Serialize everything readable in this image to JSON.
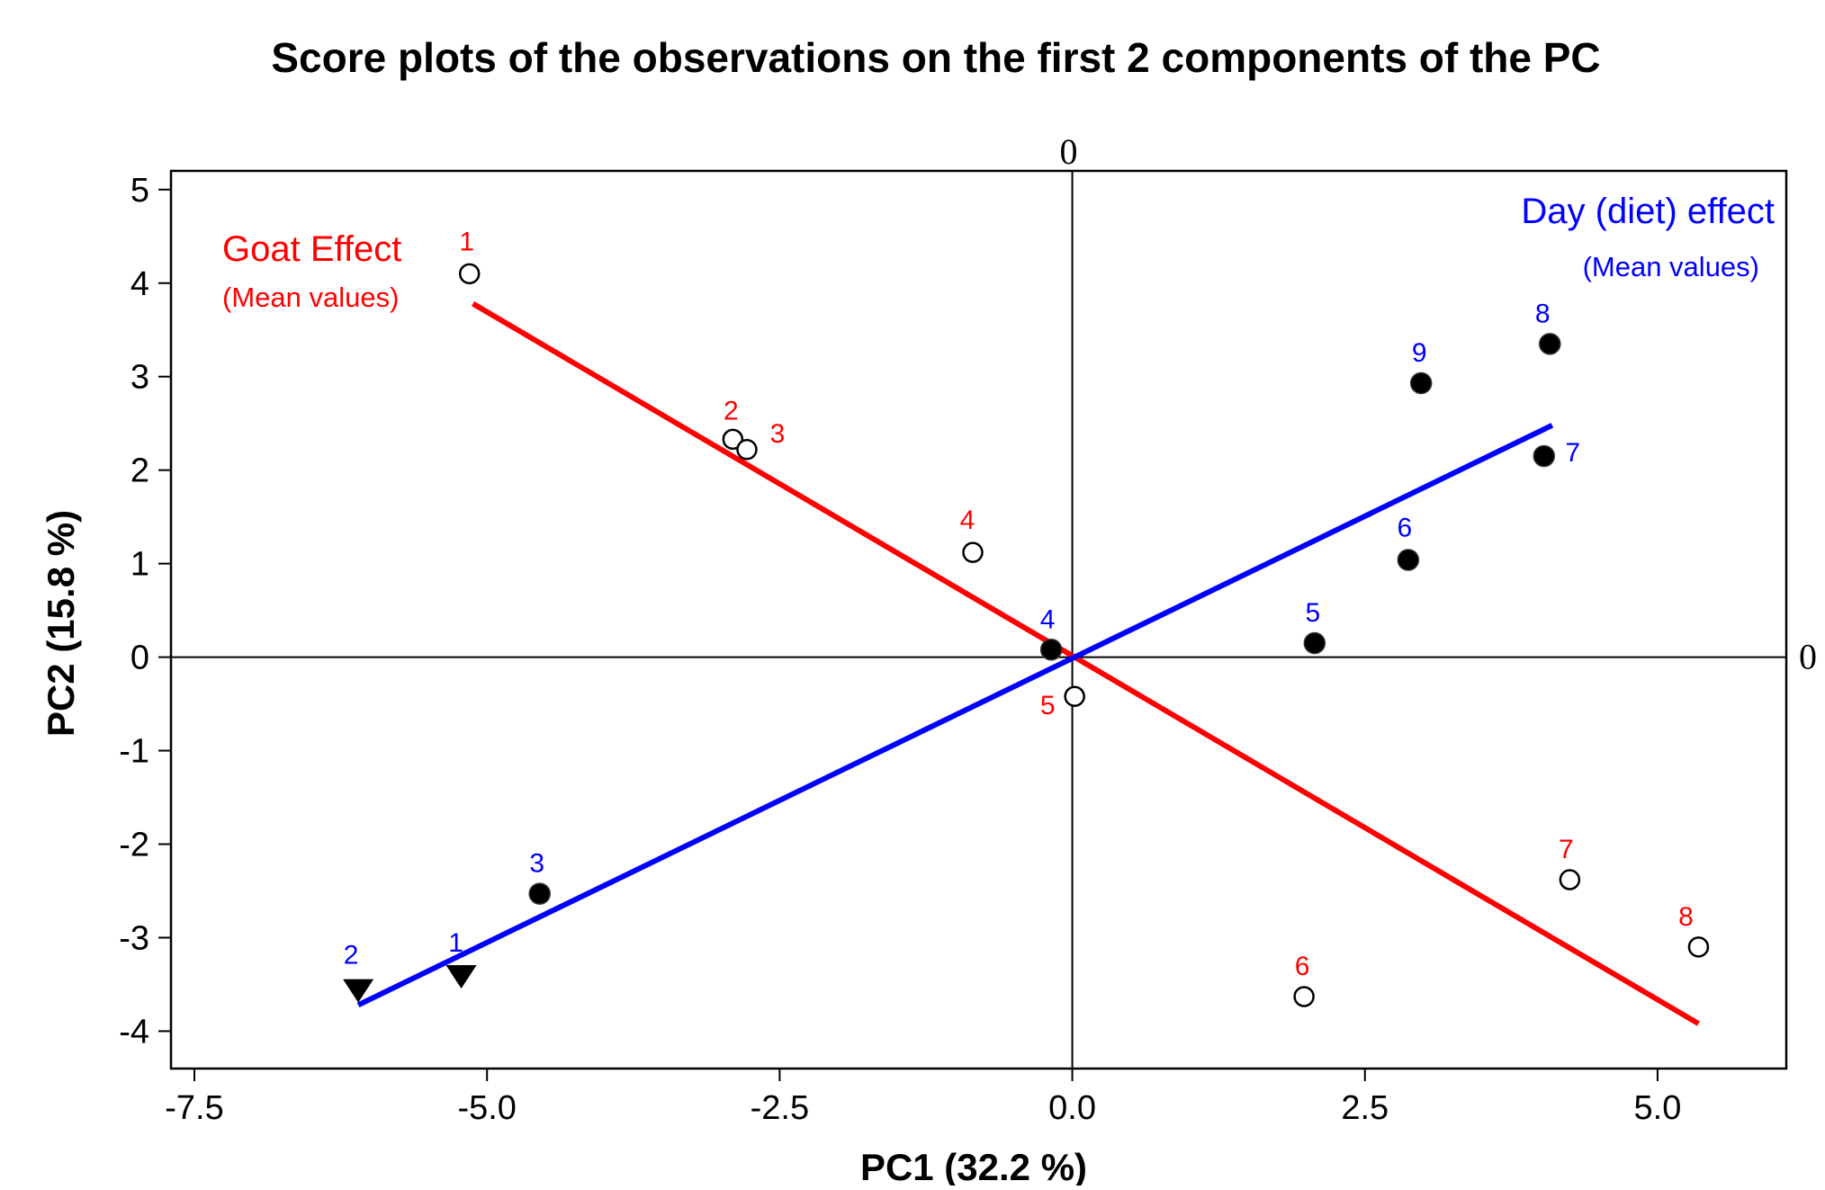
{
  "chart_data": {
    "type": "scatter",
    "title": "Score plots of the observations on the first 2 components of the PC",
    "xlabel": "PC1 (32.2 %)",
    "ylabel": "PC2 (15.8 %)",
    "xlim": [
      -7.7,
      6.1
    ],
    "ylim": [
      -4.4,
      5.2
    ],
    "xticks": [
      -7.5,
      -5.0,
      -2.5,
      0.0,
      2.5,
      5.0
    ],
    "xtick_labels": [
      "-7.5",
      "-5.0",
      "-2.5",
      "0.0",
      "2.5",
      "5.0"
    ],
    "yticks": [
      -4,
      -3,
      -2,
      -1,
      0,
      1,
      2,
      3,
      4,
      5
    ],
    "ytick_labels": [
      "-4",
      "-3",
      "-2",
      "-1",
      "0",
      "1",
      "2",
      "3",
      "4",
      "5"
    ],
    "grid": false,
    "zero_ref_lines": {
      "x_label": "0",
      "y_label": "0"
    },
    "colors": {
      "goat": "#ff0000",
      "day": "#0000ff",
      "marker": "#000000"
    },
    "annotations": {
      "goat_title": "Goat Effect",
      "goat_sub": "(Mean values)",
      "day_title": "Day (diet) effect",
      "day_sub": "(Mean values)"
    },
    "series": [
      {
        "group": "goat",
        "marker": "open-circle",
        "color": "#ff0000",
        "points": [
          {
            "label": "1",
            "x": -5.15,
            "y": 4.1
          },
          {
            "label": "2",
            "x": -2.9,
            "y": 2.33
          },
          {
            "label": "3",
            "x": -2.78,
            "y": 2.22
          },
          {
            "label": "4",
            "x": -0.85,
            "y": 1.12
          },
          {
            "label": "5",
            "x": 0.02,
            "y": -0.42
          },
          {
            "label": "6",
            "x": 1.98,
            "y": -3.63
          },
          {
            "label": "7",
            "x": 4.25,
            "y": -2.38
          },
          {
            "label": "8",
            "x": 5.35,
            "y": -3.1
          }
        ]
      },
      {
        "group": "day",
        "color": "#0000ff",
        "points": [
          {
            "label": "1",
            "x": -5.22,
            "y": -3.4,
            "marker": "triangle-down"
          },
          {
            "label": "2",
            "x": -6.1,
            "y": -3.55,
            "marker": "triangle-down"
          },
          {
            "label": "3",
            "x": -4.55,
            "y": -2.53,
            "marker": "filled-circle"
          },
          {
            "label": "4",
            "x": -0.18,
            "y": 0.08,
            "marker": "filled-circle"
          },
          {
            "label": "5",
            "x": 2.07,
            "y": 0.15,
            "marker": "filled-circle"
          },
          {
            "label": "6",
            "x": 2.87,
            "y": 1.04,
            "marker": "filled-circle"
          },
          {
            "label": "7",
            "x": 4.03,
            "y": 2.15,
            "marker": "filled-circle"
          },
          {
            "label": "8",
            "x": 4.08,
            "y": 3.35,
            "marker": "filled-circle"
          },
          {
            "label": "9",
            "x": 2.98,
            "y": 2.93,
            "marker": "filled-circle"
          }
        ]
      }
    ],
    "trend_lines": [
      {
        "group": "goat",
        "color": "#ff0000",
        "from": [
          -5.12,
          3.78
        ],
        "to": [
          5.35,
          -3.92
        ]
      },
      {
        "group": "day",
        "color": "#0000ff",
        "from": [
          -6.1,
          -3.72
        ],
        "to": [
          4.1,
          2.48
        ]
      }
    ]
  }
}
